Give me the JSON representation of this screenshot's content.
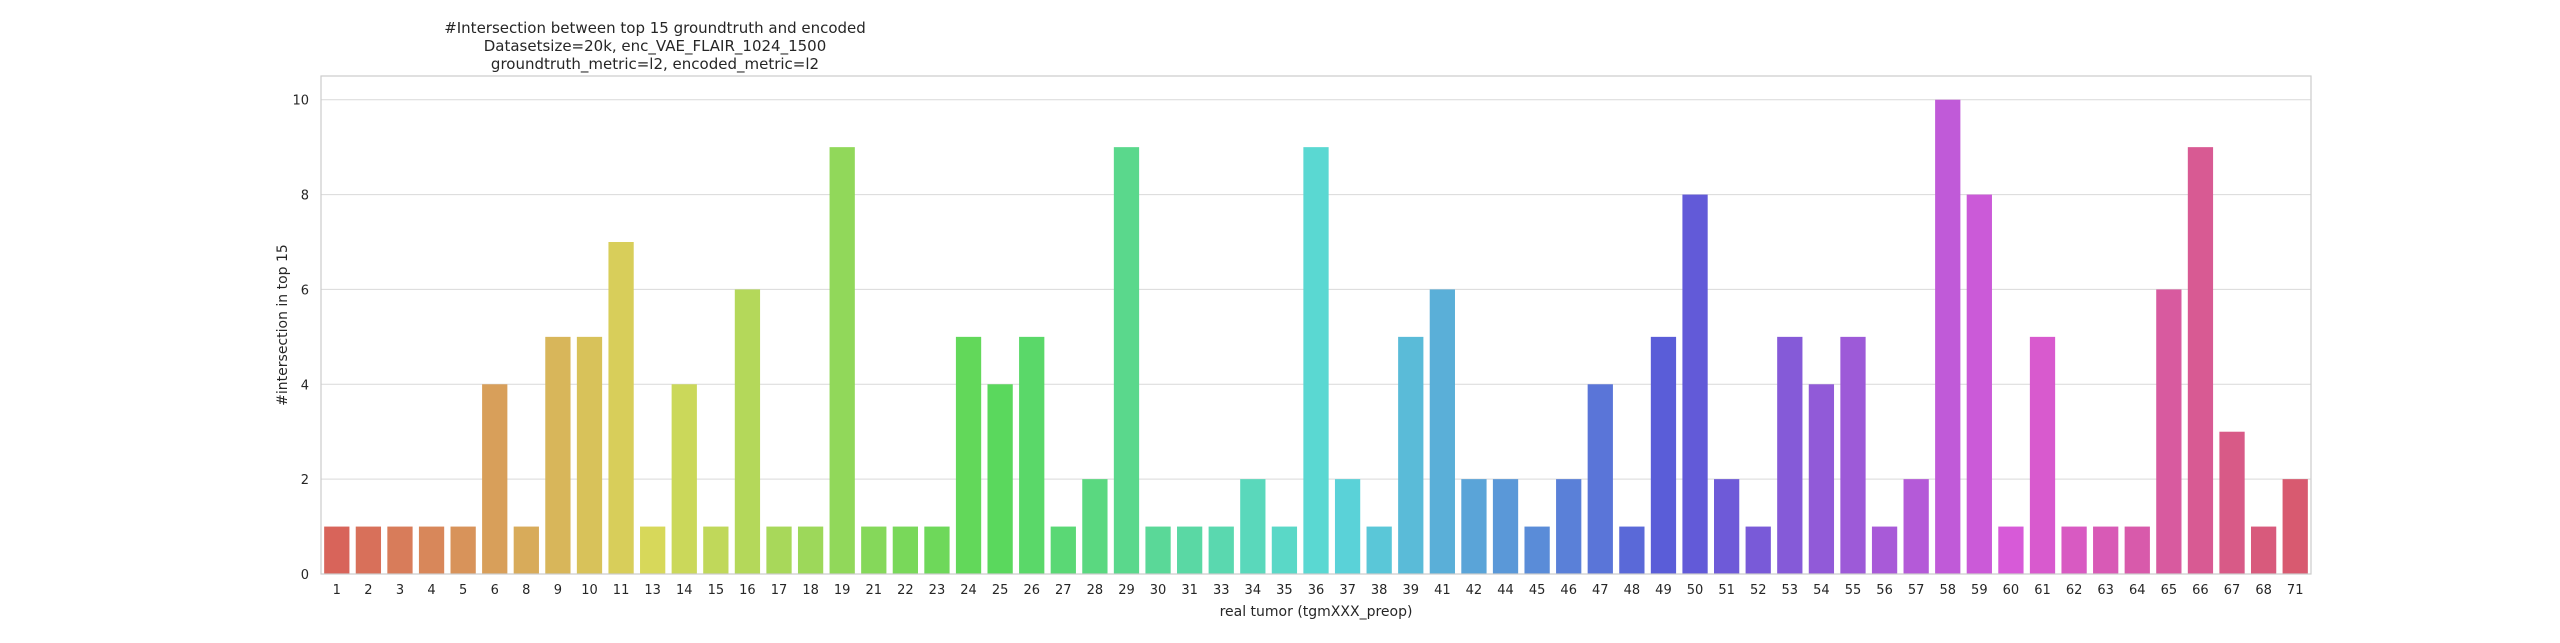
{
  "chart_data": {
    "type": "bar",
    "title": [
      "#Intersection between top 15 groundtruth and encoded",
      "Datasetsize=20k, enc_VAE_FLAIR_1024_1500",
      "groundtruth_metric=l2, encoded_metric=l2"
    ],
    "xlabel": "real tumor (tgmXXX_preop)",
    "ylabel": "#intersection in top 15",
    "ylim": [
      0,
      10.5
    ],
    "yticks": [
      0,
      2,
      4,
      6,
      8,
      10
    ],
    "grid": true,
    "categories": [
      "1",
      "2",
      "3",
      "4",
      "5",
      "6",
      "8",
      "9",
      "10",
      "11",
      "13",
      "14",
      "15",
      "16",
      "17",
      "18",
      "19",
      "21",
      "22",
      "23",
      "24",
      "25",
      "26",
      "27",
      "28",
      "29",
      "30",
      "31",
      "33",
      "34",
      "35",
      "36",
      "37",
      "38",
      "39",
      "41",
      "42",
      "44",
      "45",
      "46",
      "47",
      "48",
      "49",
      "50",
      "51",
      "52",
      "53",
      "54",
      "55",
      "56",
      "57",
      "58",
      "59",
      "60",
      "61",
      "62",
      "63",
      "64",
      "65",
      "66",
      "67",
      "68",
      "71"
    ],
    "values": [
      1,
      1,
      1,
      1,
      1,
      4,
      1,
      5,
      5,
      7,
      1,
      4,
      1,
      6,
      1,
      1,
      9,
      1,
      1,
      1,
      5,
      4,
      5,
      1,
      2,
      9,
      1,
      1,
      1,
      2,
      1,
      9,
      2,
      1,
      5,
      6,
      2,
      2,
      1,
      2,
      4,
      1,
      5,
      8,
      2,
      1,
      5,
      4,
      5,
      1,
      2,
      10,
      8,
      1,
      5,
      1,
      1,
      1,
      6,
      9,
      3,
      1,
      2
    ],
    "palette": "husl"
  }
}
